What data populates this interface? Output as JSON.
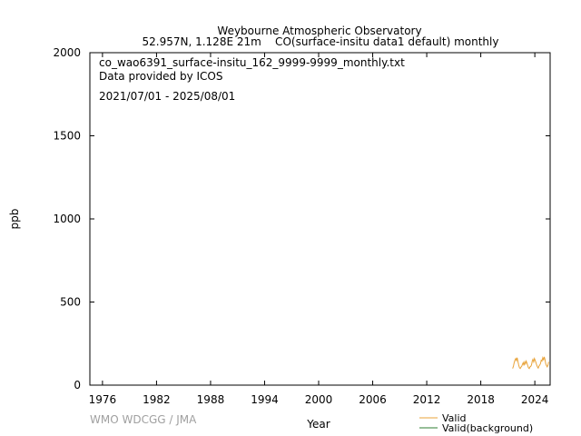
{
  "chart_data": {
    "type": "line",
    "title": "Weybourne Atmospheric Observatory",
    "subtitle": "52.957N, 1.128E 21m    CO(surface-insitu data1 default) monthly",
    "annotations": [
      "co_wao6391_surface-insitu_162_9999-9999_monthly.txt",
      "Data provided by ICOS",
      "2021/07/01 - 2025/08/01"
    ],
    "xlabel": "Year",
    "ylabel": "ppb",
    "xlim": [
      1974.6,
      2025.7
    ],
    "ylim": [
      0,
      2000
    ],
    "xticks": [
      1976,
      1982,
      1988,
      1994,
      2000,
      2006,
      2012,
      2018,
      2024
    ],
    "yticks": [
      0,
      500,
      1000,
      1500,
      2000
    ],
    "grid": false,
    "legend_position": "bottom-right",
    "series": [
      {
        "name": "Valid",
        "color": "#e8a33a",
        "x": [
          2021.54,
          2021.63,
          2021.71,
          2021.79,
          2021.88,
          2021.96,
          2022.04,
          2022.13,
          2022.21,
          2022.29,
          2022.38,
          2022.46,
          2022.54,
          2022.63,
          2022.71,
          2022.79,
          2022.88,
          2022.96,
          2023.04,
          2023.13,
          2023.21,
          2023.29,
          2023.38,
          2023.46,
          2023.54,
          2023.63,
          2023.71,
          2023.79,
          2023.88,
          2023.96,
          2024.04,
          2024.13,
          2024.21,
          2024.29,
          2024.38,
          2024.46,
          2024.54,
          2024.63,
          2024.71,
          2024.79,
          2024.88,
          2024.96,
          2025.04,
          2025.13,
          2025.21,
          2025.29,
          2025.38,
          2025.46,
          2025.54
        ],
        "values": [
          100,
          115,
          135,
          150,
          160,
          148,
          165,
          140,
          120,
          105,
          100,
          108,
          112,
          125,
          135,
          118,
          140,
          128,
          145,
          132,
          118,
          105,
          100,
          110,
          112,
          122,
          145,
          155,
          140,
          160,
          150,
          135,
          120,
          110,
          102,
          115,
          120,
          130,
          150,
          145,
          165,
          150,
          170,
          155,
          130,
          118,
          110,
          120,
          140
        ]
      },
      {
        "name": "Valid(background)",
        "color": "#2e7d32",
        "x": [],
        "values": []
      }
    ]
  },
  "watermark": "WMO WDCGG / JMA"
}
